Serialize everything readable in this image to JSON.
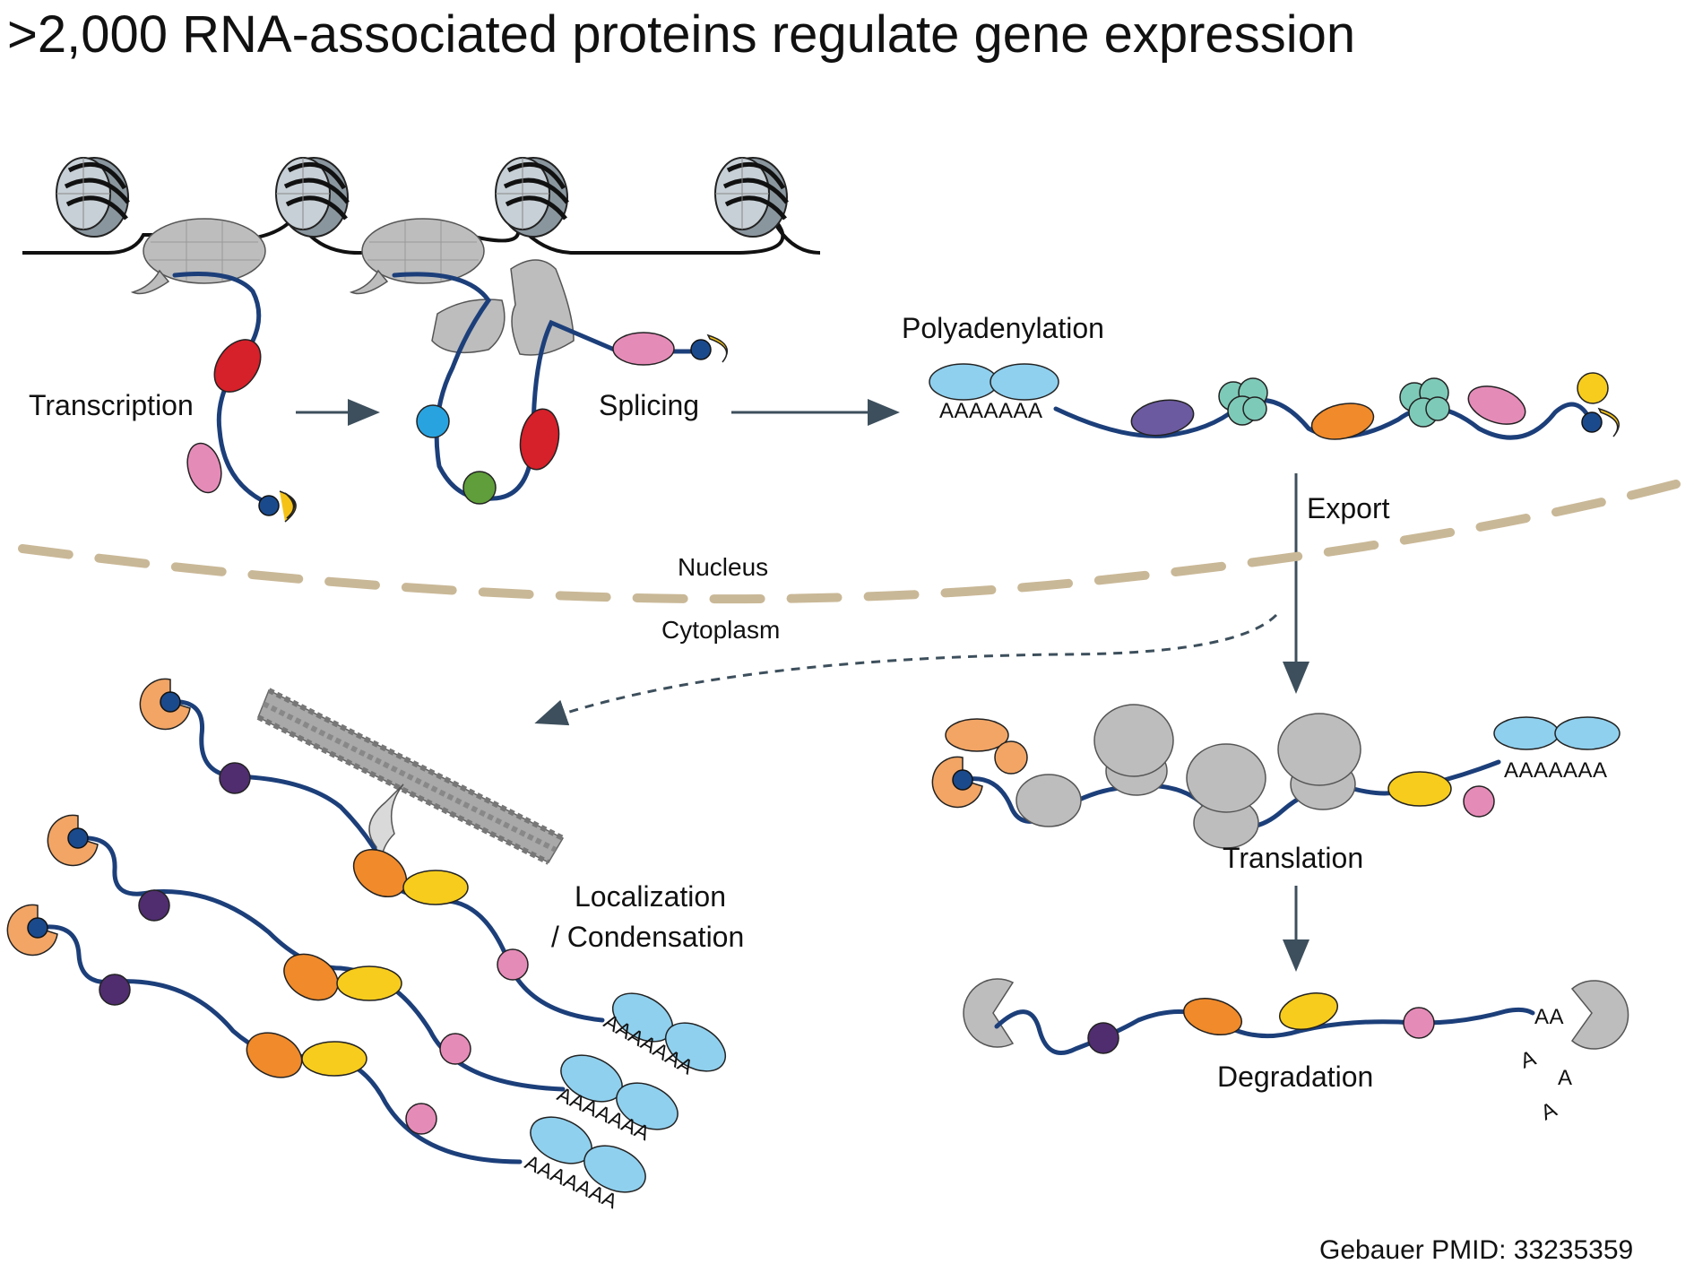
{
  "title": ">2,000 RNA-associated proteins regulate gene expression",
  "labels": {
    "transcription": "Transcription",
    "splicing": "Splicing",
    "polyadenylation": "Polyadenylation",
    "export": "Export",
    "nucleus": "Nucleus",
    "cytoplasm": "Cytoplasm",
    "localization_line1": "Localization",
    "localization_line2": "/ Condensation",
    "translation": "Translation",
    "degradation": "Degradation"
  },
  "poly_a": "AAAAAAA",
  "poly_a_short": "AA",
  "single_a": "A",
  "citation": "Gebauer PMID: 33235359",
  "colors": {
    "rna": "#1c3f7a",
    "membrane": "#c9b897",
    "arrow": "#3d4f5c",
    "protein_gray": "#bdbdbd",
    "red": "#d6202a",
    "pink": "#e58bb8",
    "blue_cap": "#1b4a8c",
    "yellow_cap": "#f5c318",
    "cyan": "#29a3e0",
    "green": "#5f9e3a",
    "light_blue": "#8fd0ee",
    "purple_dark": "#4f2d6e",
    "purple": "#6b5aa0",
    "teal": "#7ecab8",
    "orange": "#f08a2a",
    "yellow": "#f7cc1d",
    "peach": "#f2a565"
  }
}
